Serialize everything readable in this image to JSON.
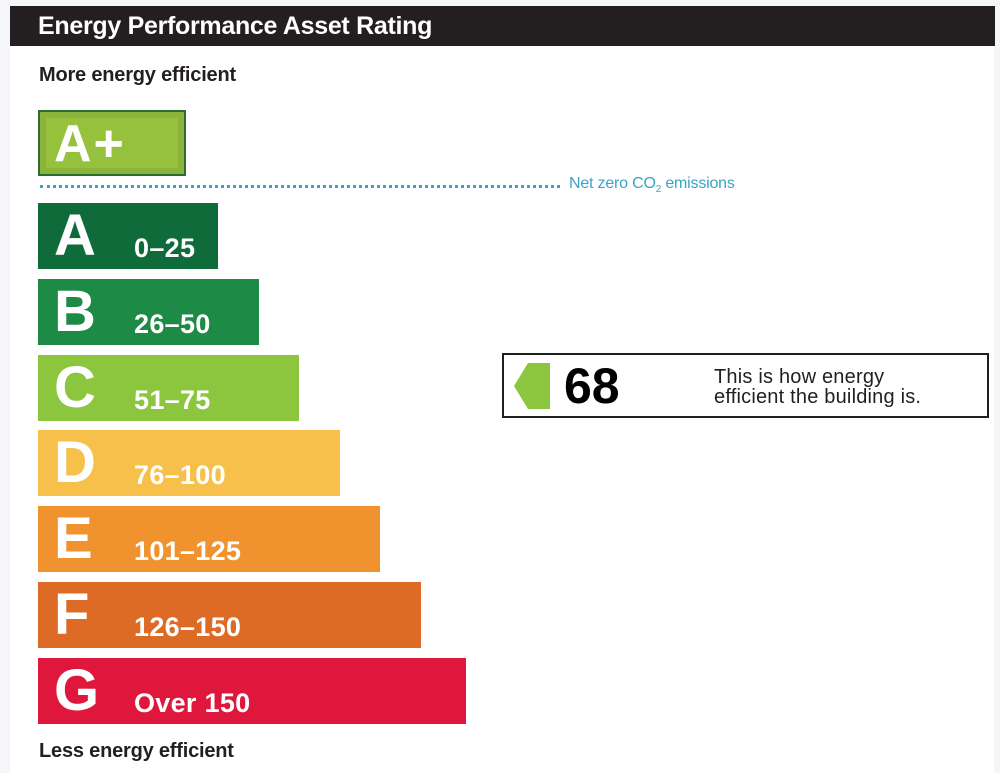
{
  "header": {
    "title": "Energy Performance Asset Rating"
  },
  "scale": {
    "top_label": "More energy efficient",
    "bottom_label": "Less energy efficient",
    "net_zero_label_prefix": "Net zero CO",
    "net_zero_label_sub": "2",
    "net_zero_label_suffix": " emissions",
    "net_zero_line_color": "#3aa3c8"
  },
  "chart_data": {
    "type": "bar",
    "title": "Energy Performance Asset Rating",
    "top_band": {
      "letter": "A+",
      "color": "#95c13d"
    },
    "bands": [
      {
        "letter": "A",
        "range": "0–25",
        "color": "#0f6b3a",
        "relative_length": 0.4
      },
      {
        "letter": "B",
        "range": "26–50",
        "color": "#1d8a45",
        "relative_length": 0.49
      },
      {
        "letter": "C",
        "range": "51–75",
        "color": "#8cc63e",
        "relative_length": 0.58
      },
      {
        "letter": "D",
        "range": "76–100",
        "color": "#f7c04a",
        "relative_length": 0.67
      },
      {
        "letter": "E",
        "range": "101–125",
        "color": "#f0922e",
        "relative_length": 0.76
      },
      {
        "letter": "F",
        "range": "126–150",
        "color": "#dd6b26",
        "relative_length": 0.85
      },
      {
        "letter": "G",
        "range": "Over 150",
        "color": "#e0173d",
        "relative_length": 0.95
      }
    ],
    "rating": {
      "value": 68,
      "band": "C",
      "pointer_color": "#8cc63e",
      "text_line1": "This is how energy",
      "text_line2": "efficient the building is."
    }
  }
}
